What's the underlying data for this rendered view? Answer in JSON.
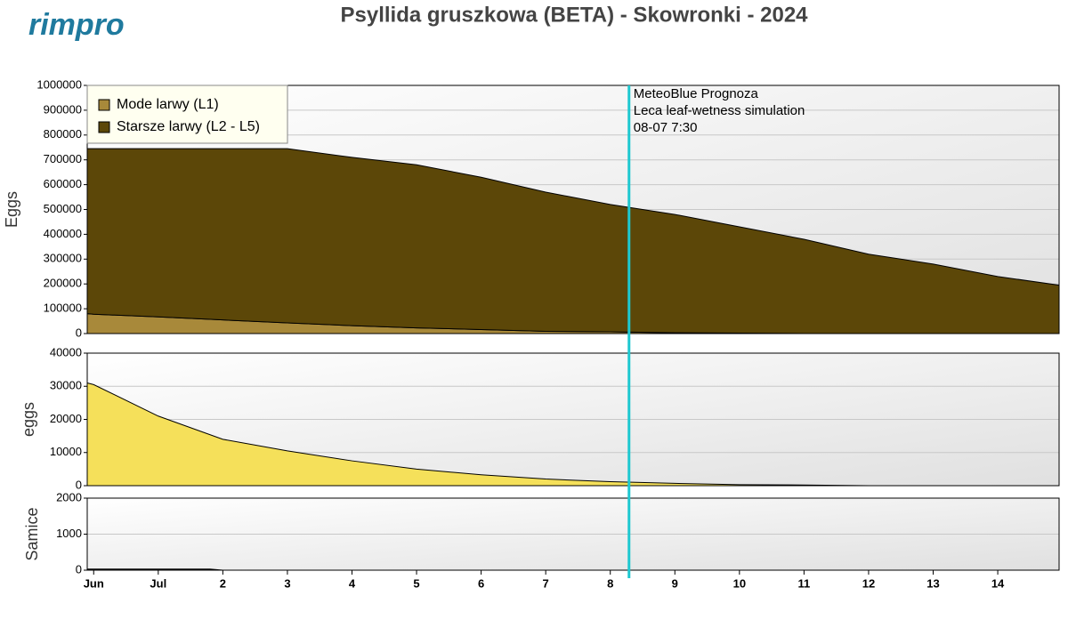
{
  "logo": "rimpro",
  "title": "Psyllida gruszkowa (BETA) - Skowronki - 2024",
  "forecast_line": {
    "x": 8.29,
    "color": "#1ec8d0",
    "labels": [
      "MeteoBlue Prognoza",
      "Leca leaf-wetness simulation",
      "08-07 7:30"
    ]
  },
  "chart_data": [
    {
      "type": "area",
      "stacked": true,
      "ylabel": "Eggs",
      "x": [
        -0.1,
        0,
        1,
        2,
        3,
        4,
        5,
        6,
        7,
        8,
        9,
        10,
        11,
        12,
        13,
        14,
        14.95
      ],
      "series": [
        {
          "name": "Mode larwy (L1)",
          "color": "#a8893a",
          "values": [
            80000,
            78000,
            67000,
            55000,
            43000,
            32000,
            23000,
            16000,
            9000,
            7000,
            3000,
            2000,
            0,
            0,
            0,
            0,
            0
          ]
        },
        {
          "name": "Starsze larwy (L2 - L5)",
          "color": "#5c4708",
          "values": [
            665000,
            667000,
            678000,
            690000,
            702000,
            678000,
            657000,
            614000,
            561000,
            513000,
            477000,
            428000,
            380000,
            320000,
            280000,
            230000,
            195000
          ]
        }
      ],
      "xlim": [
        -0.1,
        14.95
      ],
      "ylim": [
        0,
        1000000
      ],
      "yticks": [
        0,
        100000,
        200000,
        300000,
        400000,
        500000,
        600000,
        700000,
        800000,
        900000,
        1000000
      ],
      "grid": true,
      "legend": "top-left"
    },
    {
      "type": "area",
      "ylabel": "eggs",
      "x": [
        -0.1,
        0,
        1,
        2,
        3,
        4,
        5,
        6,
        7,
        8,
        9,
        10,
        11,
        12,
        13,
        14,
        14.95
      ],
      "series": [
        {
          "color": "#f5e05a",
          "values": [
            31000,
            30500,
            21000,
            14000,
            10500,
            7500,
            5000,
            3300,
            2000,
            1200,
            700,
            300,
            200,
            0,
            0,
            0,
            0
          ]
        }
      ],
      "xlim": [
        -0.1,
        14.95
      ],
      "ylim": [
        0,
        40000
      ],
      "yticks": [
        0,
        10000,
        20000,
        30000,
        40000
      ],
      "grid": true
    },
    {
      "type": "area",
      "ylabel": "Samice",
      "x": [
        -0.1,
        0,
        1,
        1.8,
        2,
        14.95
      ],
      "series": [
        {
          "color": "#222222",
          "values": [
            30,
            30,
            30,
            30,
            0,
            0
          ]
        }
      ],
      "xlim": [
        -0.1,
        14.95
      ],
      "ylim": [
        0,
        2000
      ],
      "yticks": [
        0,
        1000,
        2000
      ],
      "grid": true,
      "xticks": [
        {
          "value": 0,
          "label": "Jun"
        },
        {
          "value": 1,
          "label": "Jul"
        },
        2,
        3,
        4,
        5,
        6,
        7,
        8,
        9,
        10,
        11,
        12,
        13,
        14
      ]
    }
  ]
}
